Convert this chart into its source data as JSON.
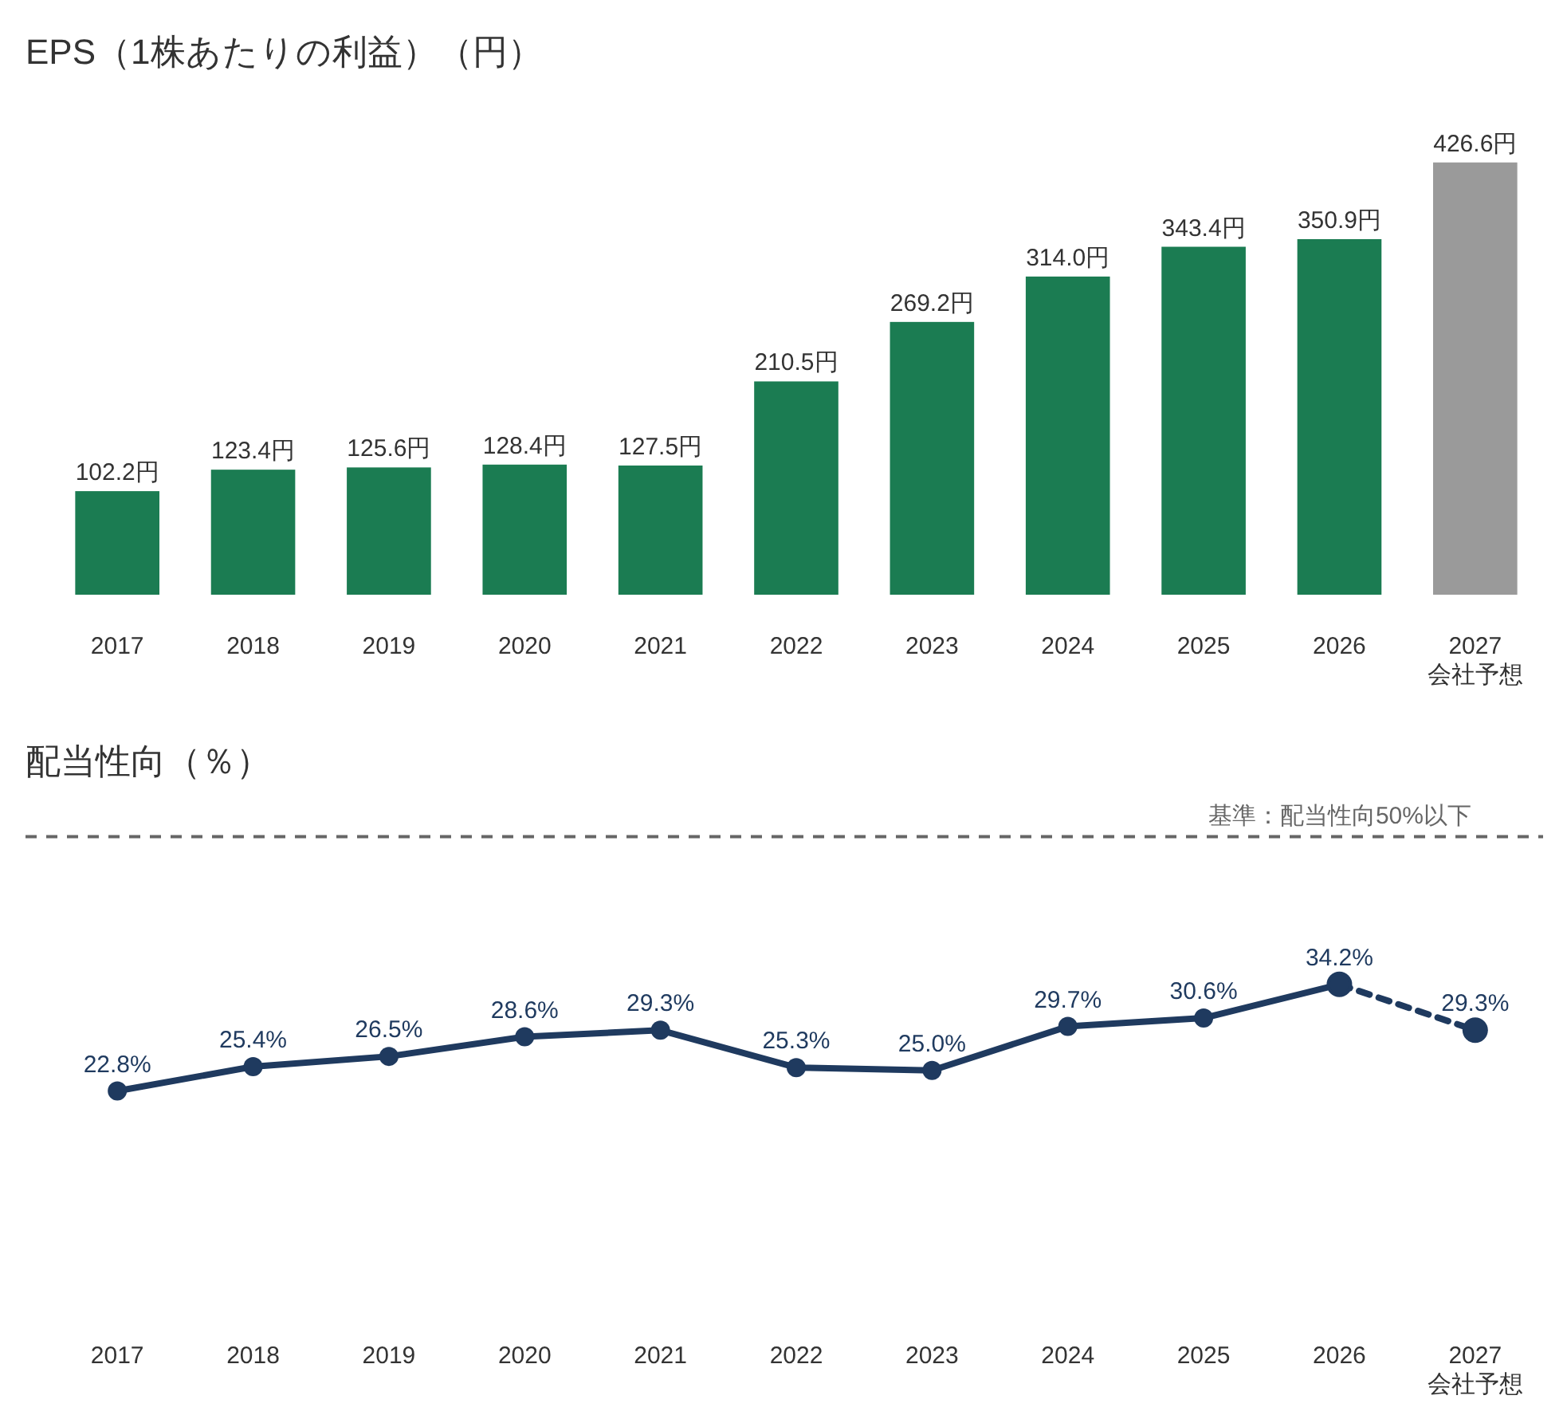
{
  "chart_data": [
    {
      "type": "bar",
      "title": "EPS（1株あたりの利益）（円）",
      "categories": [
        "2017",
        "2018",
        "2019",
        "2020",
        "2021",
        "2022",
        "2023",
        "2024",
        "2025",
        "2026",
        "2027\n会社予想"
      ],
      "values": [
        102.2,
        123.4,
        125.6,
        128.4,
        127.5,
        210.5,
        269.2,
        314.0,
        343.4,
        350.9,
        426.6
      ],
      "value_labels": [
        "102.2円",
        "123.4円",
        "125.6円",
        "128.4円",
        "127.5円",
        "210.5円",
        "269.2円",
        "314.0円",
        "343.4円",
        "350.9円",
        "426.6円"
      ],
      "colors": [
        "#1b7c52",
        "#1b7c52",
        "#1b7c52",
        "#1b7c52",
        "#1b7c52",
        "#1b7c52",
        "#1b7c52",
        "#1b7c52",
        "#1b7c52",
        "#1b7c52",
        "#9a9a9a"
      ],
      "tick_labels": "x"
    },
    {
      "type": "line",
      "title": "配当性向（％）",
      "categories": [
        "2017",
        "2018",
        "2019",
        "2020",
        "2021",
        "2022",
        "2023",
        "2024",
        "2025",
        "2026",
        "2027\n会社予想"
      ],
      "series": [
        {
          "color": "#1f3a5f",
          "line_style": "solid",
          "values": [
            22.8,
            25.4,
            26.5,
            28.6,
            29.3,
            25.3,
            25.0,
            29.7,
            30.6,
            34.2,
            null
          ],
          "value_labels": [
            "22.8%",
            "25.4%",
            "26.5%",
            "28.6%",
            "29.3%",
            "25.3%",
            "25.0%",
            "29.7%",
            "30.6%",
            "34.2%",
            null
          ]
        },
        {
          "color": "#1f3a5f",
          "line_style": "dashed",
          "values": [
            null,
            null,
            null,
            null,
            null,
            null,
            null,
            null,
            null,
            34.2,
            29.3
          ],
          "value_labels": [
            null,
            null,
            null,
            null,
            null,
            null,
            null,
            null,
            null,
            null,
            "29.3%"
          ]
        }
      ],
      "marker": "circle",
      "tick_labels": "x",
      "ref_lines": [
        {
          "axis": "y",
          "value": 50,
          "label": "基準：配当性向50%以下",
          "color": "#666666",
          "line_style": "dashed"
        }
      ]
    }
  ]
}
